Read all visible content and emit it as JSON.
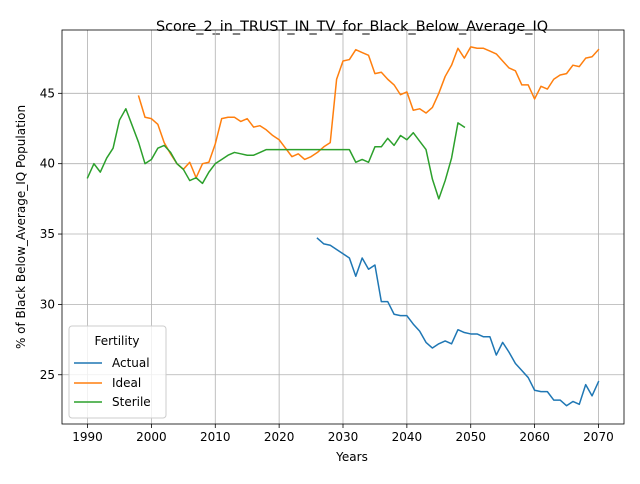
{
  "chart_data": {
    "type": "line",
    "title": "Score_2_in_TRUST_IN_TV_for_Black_Below_Average_IQ",
    "xlabel": "Years",
    "ylabel": "% of Black Below_Average_IQ Population",
    "xlim": [
      1986,
      2074
    ],
    "ylim": [
      21.5,
      49.5
    ],
    "xticks": [
      1990,
      2000,
      2010,
      2020,
      2030,
      2040,
      2050,
      2060,
      2070
    ],
    "yticks": [
      25,
      30,
      35,
      40,
      45
    ],
    "grid": true,
    "legend": {
      "title": "Fertility",
      "placement": "lower-left"
    },
    "series": [
      {
        "name": "Actual",
        "color": "#1f77b4",
        "x": [
          2026,
          2027,
          2028,
          2029,
          2030,
          2031,
          2032,
          2033,
          2034,
          2035,
          2036,
          2037,
          2038,
          2039,
          2040,
          2041,
          2042,
          2043,
          2044,
          2045,
          2046,
          2047,
          2048,
          2049,
          2050,
          2051,
          2052,
          2053,
          2054,
          2055,
          2056,
          2057,
          2058,
          2059,
          2060,
          2061,
          2062,
          2063,
          2064,
          2065,
          2066,
          2067,
          2068,
          2069,
          2070
        ],
        "y": [
          34.7,
          34.3,
          34.2,
          33.9,
          33.6,
          33.3,
          32.0,
          33.3,
          32.5,
          32.8,
          30.2,
          30.2,
          29.3,
          29.2,
          29.2,
          28.6,
          28.1,
          27.3,
          26.9,
          27.2,
          27.4,
          27.2,
          28.2,
          28.0,
          27.9,
          27.9,
          27.7,
          27.7,
          26.4,
          27.3,
          26.6,
          25.8,
          25.3,
          24.8,
          23.9,
          23.8,
          23.8,
          23.2,
          23.2,
          22.8,
          23.1,
          22.9,
          24.3,
          23.5,
          24.5
        ]
      },
      {
        "name": "Ideal",
        "color": "#ff7f0e",
        "x": [
          1998,
          1999,
          2000,
          2001,
          2002,
          2003,
          2004,
          2005,
          2006,
          2007,
          2008,
          2009,
          2010,
          2011,
          2012,
          2013,
          2014,
          2015,
          2016,
          2017,
          2018,
          2019,
          2020,
          2021,
          2022,
          2023,
          2024,
          2025,
          2026,
          2027,
          2028,
          2029,
          2030,
          2031,
          2032,
          2033,
          2034,
          2035,
          2036,
          2037,
          2038,
          2039,
          2040,
          2041,
          2042,
          2043,
          2044,
          2045,
          2046,
          2047,
          2048,
          2049,
          2050,
          2051,
          2052,
          2053,
          2054,
          2055,
          2056,
          2057,
          2058,
          2059,
          2060,
          2061,
          2062,
          2063,
          2064,
          2065,
          2066,
          2067,
          2068,
          2069,
          2070
        ],
        "y": [
          44.8,
          43.3,
          43.2,
          42.8,
          41.5,
          40.7,
          40.0,
          39.6,
          40.1,
          39.0,
          40.0,
          40.1,
          41.4,
          43.2,
          43.3,
          43.3,
          43.0,
          43.2,
          42.6,
          42.7,
          42.4,
          42.0,
          41.7,
          41.1,
          40.5,
          40.7,
          40.3,
          40.5,
          40.8,
          41.2,
          41.5,
          46.0,
          47.3,
          47.4,
          48.1,
          47.9,
          47.7,
          46.4,
          46.5,
          46.0,
          45.6,
          44.9,
          45.1,
          43.8,
          43.9,
          43.6,
          44.0,
          45.0,
          46.2,
          47.0,
          48.2,
          47.5,
          48.3,
          48.2,
          48.2,
          48.0,
          47.8,
          47.3,
          46.8,
          46.6,
          45.6,
          45.6,
          44.6,
          45.5,
          45.3,
          46.0,
          46.3,
          46.4,
          47.0,
          46.9,
          47.5,
          47.6,
          48.1
        ]
      },
      {
        "name": "Sterile",
        "color": "#2ca02c",
        "x": [
          1990,
          1991,
          1992,
          1993,
          1994,
          1995,
          1996,
          1997,
          1998,
          1999,
          2000,
          2001,
          2002,
          2003,
          2004,
          2005,
          2006,
          2007,
          2008,
          2009,
          2010,
          2011,
          2012,
          2013,
          2014,
          2015,
          2016,
          2017,
          2018,
          2019,
          2020,
          2021,
          2022,
          2023,
          2024,
          2025,
          2026,
          2027,
          2028,
          2029,
          2030,
          2031,
          2032,
          2033,
          2034,
          2035,
          2036,
          2037,
          2038,
          2039,
          2040,
          2041,
          2042,
          2043,
          2044,
          2045,
          2046,
          2047,
          2048,
          2049
        ],
        "y": [
          39.0,
          40.0,
          39.4,
          40.4,
          41.1,
          43.1,
          43.9,
          42.7,
          41.5,
          40.0,
          40.3,
          41.1,
          41.3,
          40.8,
          40.0,
          39.6,
          38.8,
          39.0,
          38.6,
          39.4,
          40.0,
          40.3,
          40.6,
          40.8,
          40.7,
          40.6,
          40.6,
          40.8,
          41.0,
          41.0,
          41.0,
          41.0,
          41.0,
          41.0,
          41.0,
          41.0,
          41.0,
          41.0,
          41.0,
          41.0,
          41.0,
          41.0,
          40.1,
          40.3,
          40.1,
          41.2,
          41.2,
          41.8,
          41.3,
          42.0,
          41.7,
          42.2,
          41.6,
          41.0,
          38.9,
          37.5,
          38.8,
          40.4,
          42.9,
          42.6
        ]
      }
    ]
  }
}
